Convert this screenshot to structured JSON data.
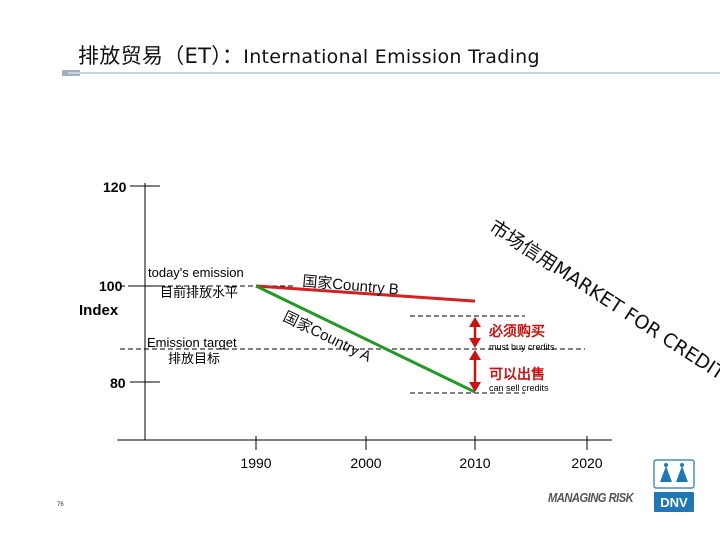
{
  "title": {
    "cn": "排放贸易（ET）：",
    "en": "International Emission Trading"
  },
  "axis": {
    "y_ticks": [
      "120",
      "100",
      "80"
    ],
    "y_unit": "Index",
    "x_ticks": [
      "1990",
      "2000",
      "2010",
      "2020"
    ]
  },
  "labels": {
    "today_en": "today's emission",
    "today_cn": "目前排放水平",
    "target_en": "Emission target",
    "target_cn": "排放目标",
    "country_b": "国家Country B",
    "country_a": "国家Country A",
    "must_buy_cn": "必须购买",
    "must_buy_en": "must buy credits",
    "can_sell_cn": "可以出售",
    "can_sell_en": "can sell credits",
    "market": "市场信用MARKET FOR CREDITS"
  },
  "chart_data": {
    "type": "line",
    "x_ticks": [
      1990,
      2000,
      2010,
      2020
    ],
    "y_ticks": [
      120,
      100,
      80
    ],
    "ylabel": "Index",
    "series": [
      {
        "name": "国家Country B",
        "x": [
          1990,
          2010
        ],
        "y": [
          100,
          97
        ]
      },
      {
        "name": "国家Country A",
        "x": [
          1990,
          2010
        ],
        "y": [
          100,
          79
        ]
      }
    ],
    "reference_lines": [
      {
        "label": "today's emission 目前排放水平",
        "y": 100
      },
      {
        "label": "Emission target 排放目标",
        "y": 92
      }
    ],
    "annotations": [
      {
        "text": "必须购买 must buy credits",
        "x": 2010,
        "from": 92,
        "to": 97
      },
      {
        "text": "可以出售 can sell credits",
        "x": 2010,
        "from": 92,
        "to": 79
      }
    ]
  },
  "colors": {
    "country_b": "#d42020",
    "country_a": "#229922",
    "arrow": "#cc1111",
    "title_rule": "#c9d3dc",
    "logo": "#1f78b4"
  },
  "footer": {
    "page": "76",
    "brand": "MANAGING RISK",
    "logo_text": "DNV"
  }
}
